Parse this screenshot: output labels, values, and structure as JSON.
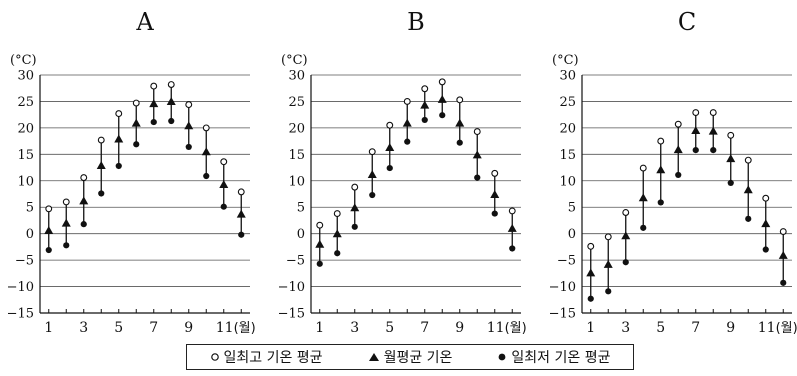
{
  "chart_data": [
    {
      "type": "scatter",
      "title": "A",
      "unit": "(°C)",
      "x": [
        1,
        2,
        3,
        4,
        5,
        6,
        7,
        8,
        9,
        10,
        11,
        12
      ],
      "xticks": [
        "1",
        "3",
        "5",
        "7",
        "9",
        "11"
      ],
      "xtick_positions": [
        1,
        3,
        5,
        7,
        9,
        11
      ],
      "x_unit": "(월)",
      "yticks": [
        30,
        25,
        20,
        15,
        10,
        5,
        0,
        -5,
        -10,
        -15
      ],
      "ylim": [
        -15,
        30
      ],
      "grid": true,
      "series": [
        {
          "name": "일최고 기온 평균",
          "marker": "open-circle",
          "values": [
            4.7,
            6.0,
            10.6,
            17.7,
            22.7,
            24.7,
            27.9,
            28.2,
            24.4,
            20.0,
            13.6,
            7.9
          ]
        },
        {
          "name": "월평균 기온",
          "marker": "triangle",
          "values": [
            0.5,
            1.9,
            6.1,
            12.8,
            17.8,
            20.8,
            24.5,
            24.9,
            20.3,
            15.4,
            9.2,
            3.6
          ]
        },
        {
          "name": "일최저 기온 평균",
          "marker": "filled-circle",
          "values": [
            -3.1,
            -2.2,
            1.8,
            7.6,
            12.8,
            16.9,
            21.1,
            21.3,
            16.4,
            10.9,
            5.1,
            -0.2
          ]
        }
      ]
    },
    {
      "type": "scatter",
      "title": "B",
      "unit": "(°C)",
      "x": [
        1,
        2,
        3,
        4,
        5,
        6,
        7,
        8,
        9,
        10,
        11,
        12
      ],
      "xticks": [
        "1",
        "3",
        "5",
        "7",
        "9",
        "11"
      ],
      "xtick_positions": [
        1,
        3,
        5,
        7,
        9,
        11
      ],
      "x_unit": "(월)",
      "yticks": [
        30,
        25,
        20,
        15,
        10,
        5,
        0,
        -5,
        -10,
        -15
      ],
      "ylim": [
        -15,
        30
      ],
      "grid": true,
      "series": [
        {
          "name": "일최고 기온 평균",
          "marker": "open-circle",
          "values": [
            1.6,
            3.8,
            8.8,
            15.5,
            20.5,
            25.0,
            27.4,
            28.7,
            25.3,
            19.3,
            11.4,
            4.3
          ]
        },
        {
          "name": "월평균 기온",
          "marker": "triangle",
          "values": [
            -2.1,
            -0.1,
            4.8,
            11.1,
            16.2,
            20.8,
            24.2,
            25.3,
            20.8,
            14.8,
            7.3,
            0.9
          ]
        },
        {
          "name": "일최저 기온 평균",
          "marker": "filled-circle",
          "values": [
            -5.7,
            -3.7,
            1.3,
            7.3,
            12.4,
            17.4,
            21.5,
            22.4,
            17.2,
            10.6,
            3.8,
            -2.8
          ]
        }
      ]
    },
    {
      "type": "scatter",
      "title": "C",
      "unit": "(°C)",
      "x": [
        1,
        2,
        3,
        4,
        5,
        6,
        7,
        8,
        9,
        10,
        11,
        12
      ],
      "xticks": [
        "1",
        "3",
        "5",
        "7",
        "9",
        "11"
      ],
      "xtick_positions": [
        1,
        3,
        5,
        7,
        9,
        11
      ],
      "x_unit": "(월)",
      "yticks": [
        30,
        25,
        20,
        15,
        10,
        5,
        0,
        -5,
        -10,
        -15
      ],
      "ylim": [
        -15,
        30
      ],
      "grid": true,
      "series": [
        {
          "name": "일최고 기온 평균",
          "marker": "open-circle",
          "values": [
            -2.4,
            -0.6,
            4.0,
            12.4,
            17.5,
            20.7,
            22.9,
            22.9,
            18.6,
            13.9,
            6.7,
            0.4
          ]
        },
        {
          "name": "월평균 기온",
          "marker": "triangle",
          "values": [
            -7.5,
            -5.9,
            -0.5,
            6.7,
            12.0,
            15.8,
            19.4,
            19.3,
            14.1,
            8.2,
            1.8,
            -4.2
          ]
        },
        {
          "name": "일최저 기온 평균",
          "marker": "filled-circle",
          "values": [
            -12.3,
            -10.9,
            -5.4,
            1.1,
            5.9,
            11.1,
            15.8,
            15.8,
            9.6,
            2.8,
            -3.0,
            -9.3
          ]
        }
      ]
    }
  ],
  "legend": {
    "items": [
      {
        "label": "일최고 기온 평균",
        "marker": "open-circle"
      },
      {
        "label": "월평균 기온",
        "marker": "triangle"
      },
      {
        "label": "일최저 기온 평균",
        "marker": "filled-circle"
      }
    ]
  },
  "colors": {
    "ink": "#111111",
    "grid": "#555555",
    "background": "#ffffff"
  }
}
